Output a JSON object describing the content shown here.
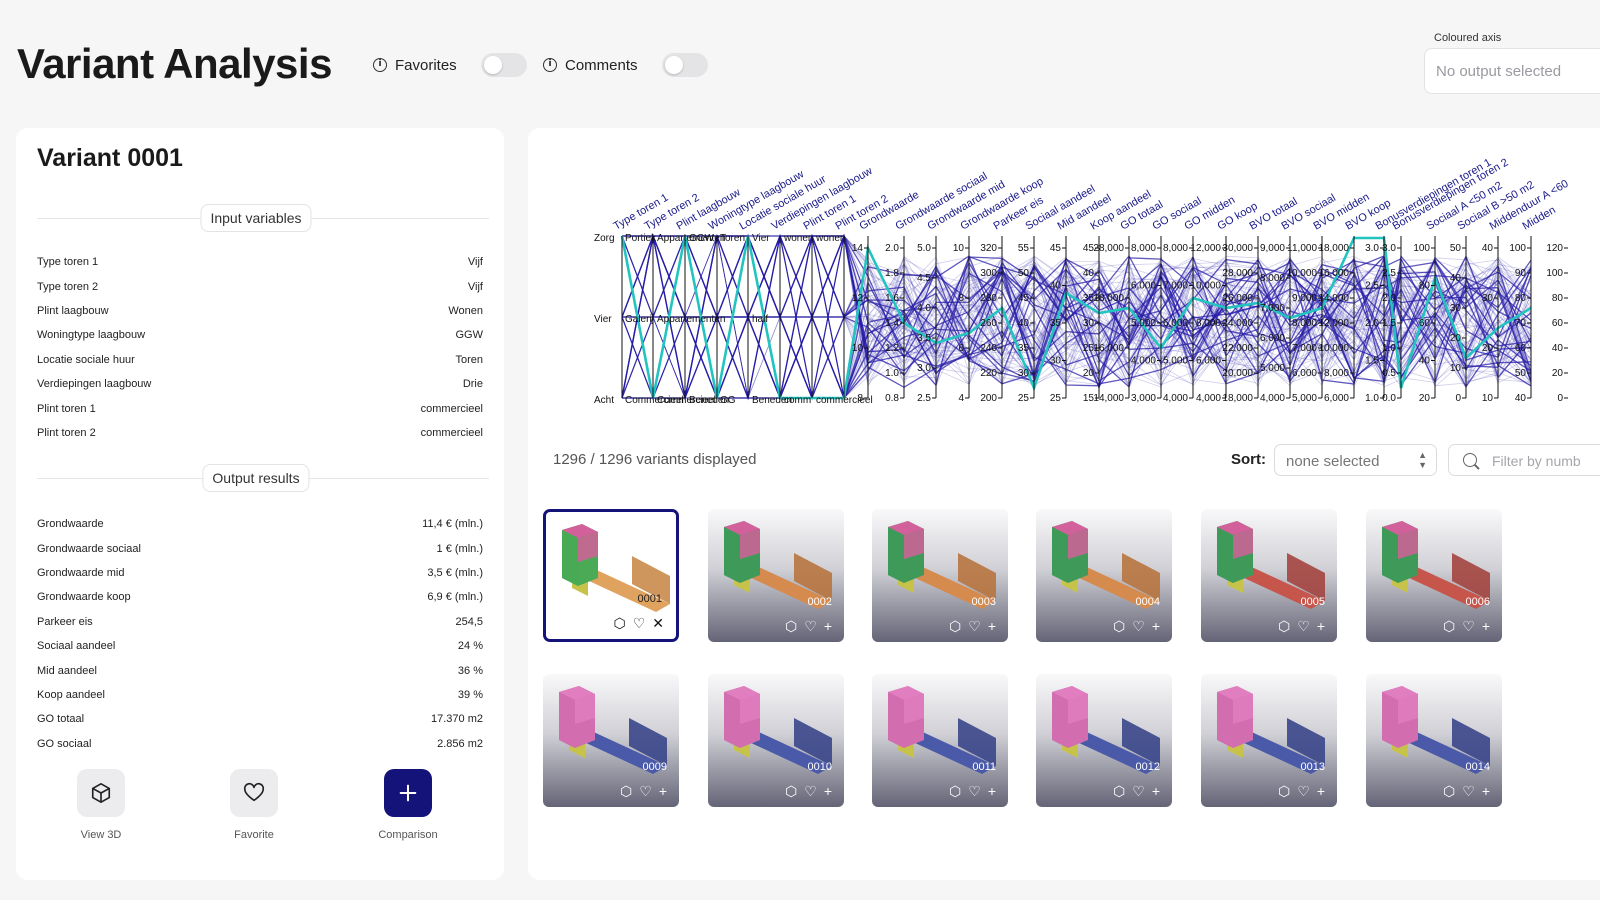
{
  "header": {
    "title": "Variant Analysis",
    "favorites_label": "Favorites",
    "comments_label": "Comments",
    "coloured_axis_label": "Coloured axis",
    "coloured_axis_value": "No output selected"
  },
  "variant": {
    "title": "Variant 0001",
    "input_section": "Input variables",
    "inputs": [
      {
        "label": "Type toren 1",
        "value": "Vijf"
      },
      {
        "label": "Type toren 2",
        "value": "Vijf"
      },
      {
        "label": "Plint laagbouw",
        "value": "Wonen"
      },
      {
        "label": "Woningtype laagbouw",
        "value": "GGW"
      },
      {
        "label": "Locatie sociale huur",
        "value": "Toren"
      },
      {
        "label": "Verdiepingen laagbouw",
        "value": "Drie"
      },
      {
        "label": "Plint toren 1",
        "value": "commercieel"
      },
      {
        "label": "Plint toren 2",
        "value": "commercieel"
      }
    ],
    "output_section": "Output results",
    "outputs": [
      {
        "label": "Grondwaarde",
        "value": "11,4 € (mln.)"
      },
      {
        "label": "Grondwaarde sociaal",
        "value": "1 € (mln.)"
      },
      {
        "label": "Grondwaarde mid",
        "value": "3,5 € (mln.)"
      },
      {
        "label": "Grondwaarde koop",
        "value": "6,9 € (mln.)"
      },
      {
        "label": "Parkeer eis",
        "value": "254,5"
      },
      {
        "label": "Sociaal aandeel",
        "value": "24 %"
      },
      {
        "label": "Mid aandeel",
        "value": "36 %"
      },
      {
        "label": "Koop aandeel",
        "value": "39 %"
      },
      {
        "label": "GO totaal",
        "value": "17.370 m2"
      },
      {
        "label": "GO sociaal",
        "value": "2.856 m2"
      }
    ],
    "actions": {
      "view3d": "View 3D",
      "favorite": "Favorite",
      "comparison": "Comparison"
    }
  },
  "toolbar": {
    "count": "1296 / 1296 variants displayed",
    "sort_label": "Sort:",
    "sort_value": "none selected",
    "filter_placeholder": "Filter by numb"
  },
  "colors": {
    "accent": "#14137a",
    "highlight": "#22c4c0",
    "lines": "#2a1fa8"
  },
  "thumbnails": [
    "0001",
    "0002",
    "0003",
    "0004",
    "0005",
    "0006",
    "0009",
    "0010",
    "0011",
    "0012",
    "0013",
    "0014"
  ],
  "parallel_axes": {
    "labels": [
      "Type toren 1",
      "Type toren 2",
      "Plint laagbouw",
      "Woningtype laagbouw",
      "Locatie sociale huur",
      "Verdiepingen laagbouw",
      "Plint toren 1",
      "Plint toren 2",
      "Grondwaarde",
      "Grondwaarde sociaal",
      "Grondwaarde mid",
      "Grondwaarde koop",
      "Parkeer eis",
      "Sociaal aandeel",
      "Mid aandeel",
      "Koop aandeel",
      "GO totaal",
      "GO sociaal",
      "GO midden",
      "GO koop",
      "BVO totaal",
      "BVO sociaal",
      "BVO midden",
      "BVO koop",
      "Bonusverdiepingen toren 1",
      "Bonusverdiepingen toren 2",
      "Sociaal A <50 m2",
      "Sociaal B >50 m2",
      "Middenduur A <60",
      "Midden"
    ],
    "categorical_ticks": [
      [
        "Zorg",
        "Vier",
        "Acht"
      ],
      [
        "Portiek",
        "Galerij",
        "Commercieel"
      ],
      [
        "Appartementen",
        "Appartementen",
        "Commercieel"
      ],
      [
        "GGW",
        "Beneden"
      ],
      [
        "Toren",
        "GG"
      ],
      [
        "Vier",
        "half",
        "Beneden"
      ],
      [
        "wonen",
        "comm"
      ],
      [
        "wonen",
        "commercieel"
      ]
    ],
    "numeric_ticks": [
      [
        "14",
        "12",
        "10",
        "8"
      ],
      [
        "2.0",
        "1.8",
        "1.6",
        "1.4",
        "1.2",
        "1.0",
        "0.8"
      ],
      [
        "5.0",
        "4.5",
        "4.0",
        "3.5",
        "3.0",
        "2.5"
      ],
      [
        "10",
        "8",
        "6",
        "4"
      ],
      [
        "320",
        "300",
        "280",
        "260",
        "240",
        "220",
        "200"
      ],
      [
        "55",
        "50",
        "45",
        "40",
        "35",
        "30",
        "25"
      ],
      [
        "45",
        "40",
        "35",
        "30",
        "25"
      ],
      [
        "45",
        "40",
        "35",
        "30",
        "25",
        "20",
        "15"
      ],
      [
        "28,000",
        "18,000",
        "16,000",
        "14,000"
      ],
      [
        "8,000",
        "6,000",
        "5,000",
        "4,000",
        "3,000"
      ],
      [
        "8,000",
        "7,000",
        "6,000",
        "5,000",
        "4,000"
      ],
      [
        "12,000",
        "10,000",
        "8,000",
        "6,000",
        "4,000"
      ],
      [
        "30,000",
        "28,000",
        "26,000",
        "24,000",
        "22,000",
        "20,000",
        "18,000"
      ],
      [
        "9,000",
        "8,000",
        "7,000",
        "6,000",
        "5,000",
        "4,000"
      ],
      [
        "11,000",
        "10,000",
        "9,000",
        "8,000",
        "7,000",
        "6,000",
        "5,000"
      ],
      [
        "18,000",
        "16,000",
        "14,000",
        "12,000",
        "10,000",
        "8,000",
        "6,000"
      ],
      [
        "3.0",
        "2.5",
        "2.0",
        "1.5",
        "1.0"
      ],
      [
        "3.0",
        "2.5",
        "2.0",
        "1.5",
        "1.0",
        "0.5",
        "0.0"
      ],
      [
        "100",
        "80",
        "60",
        "40",
        "20"
      ],
      [
        "50",
        "40",
        "30",
        "20",
        "10",
        "0"
      ],
      [
        "40",
        "30",
        "20",
        "10"
      ],
      [
        "100",
        "90",
        "80",
        "70",
        "60",
        "50",
        "40"
      ],
      [
        "120",
        "100",
        "80",
        "60",
        "40",
        "20",
        "0"
      ]
    ]
  }
}
